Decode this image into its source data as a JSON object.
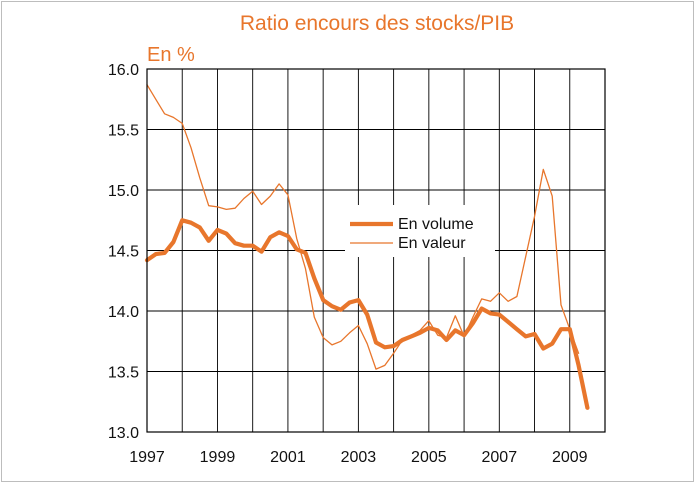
{
  "chart_data": {
    "type": "line",
    "title": "Ratio encours des stocks/PIB",
    "ylabel": "En %",
    "xlabel": "",
    "x_range": [
      1997,
      2010
    ],
    "ylim": [
      13.0,
      16.0
    ],
    "x_ticks": [
      1997,
      1999,
      2001,
      2003,
      2005,
      2007,
      2009
    ],
    "x_tick_labels": [
      "1997",
      "1999",
      "2001",
      "2003",
      "2005",
      "2007",
      "2009"
    ],
    "y_ticks": [
      13.0,
      13.5,
      14.0,
      14.5,
      15.0,
      15.5,
      16.0
    ],
    "y_tick_labels": [
      "13.0",
      "13.5",
      "14.0",
      "14.5",
      "15.0",
      "15.5",
      "16.0"
    ],
    "grid": true,
    "legend_position": "center-right",
    "colors": {
      "accent": "#e8762c",
      "grid": "#000000"
    },
    "series": [
      {
        "name": "En volume",
        "style": "thick",
        "x": [
          1997.0,
          1997.25,
          1997.5,
          1997.75,
          1998.0,
          1998.25,
          1998.5,
          1998.75,
          1999.0,
          1999.25,
          1999.5,
          1999.75,
          2000.0,
          2000.25,
          2000.5,
          2000.75,
          2001.0,
          2001.25,
          2001.5,
          2001.75,
          2002.0,
          2002.25,
          2002.5,
          2002.75,
          2003.0,
          2003.25,
          2003.5,
          2003.75,
          2004.0,
          2004.25,
          2004.5,
          2004.75,
          2005.0,
          2005.25,
          2005.5,
          2005.75,
          2006.0,
          2006.25,
          2006.5,
          2006.75,
          2007.0,
          2007.25,
          2007.5,
          2007.75,
          2008.0,
          2008.25,
          2008.5,
          2008.75,
          2009.0,
          2009.25,
          2009.5
        ],
        "values": [
          14.42,
          14.47,
          14.48,
          14.57,
          14.75,
          14.73,
          14.69,
          14.58,
          14.67,
          14.64,
          14.56,
          14.54,
          14.54,
          14.49,
          14.61,
          14.65,
          14.62,
          14.51,
          14.48,
          14.27,
          14.09,
          14.04,
          14.01,
          14.07,
          14.09,
          13.97,
          13.74,
          13.7,
          13.71,
          13.76,
          13.79,
          13.82,
          13.86,
          13.84,
          13.76,
          13.84,
          13.8,
          13.9,
          14.02,
          13.98,
          13.97,
          13.91,
          13.85,
          13.79,
          13.81,
          13.69,
          13.73,
          13.85,
          13.85,
          13.55,
          13.2
        ]
      },
      {
        "name": "En valeur",
        "style": "thin",
        "x": [
          1997.0,
          1997.25,
          1997.5,
          1997.75,
          1998.0,
          1998.25,
          1998.5,
          1998.75,
          1999.0,
          1999.25,
          1999.5,
          1999.75,
          2000.0,
          2000.25,
          2000.5,
          2000.75,
          2001.0,
          2001.25,
          2001.5,
          2001.75,
          2002.0,
          2002.25,
          2002.5,
          2002.75,
          2003.0,
          2003.25,
          2003.5,
          2003.75,
          2004.0,
          2004.25,
          2004.5,
          2004.75,
          2005.0,
          2005.25,
          2005.5,
          2005.75,
          2006.0,
          2006.25,
          2006.5,
          2006.75,
          2007.0,
          2007.25,
          2007.5,
          2007.75,
          2008.0,
          2008.25,
          2008.5,
          2008.75,
          2009.0,
          2009.25
        ],
        "values": [
          15.87,
          15.75,
          15.63,
          15.6,
          15.55,
          15.35,
          15.1,
          14.87,
          14.86,
          14.84,
          14.85,
          14.93,
          14.99,
          14.88,
          14.95,
          15.05,
          14.96,
          14.6,
          14.35,
          13.95,
          13.78,
          13.72,
          13.75,
          13.82,
          13.88,
          13.73,
          13.52,
          13.55,
          13.65,
          13.76,
          13.8,
          13.84,
          13.92,
          13.8,
          13.78,
          13.96,
          13.79,
          13.95,
          14.1,
          14.08,
          14.15,
          14.08,
          14.12,
          14.45,
          14.78,
          15.17,
          14.95,
          14.05,
          13.85,
          13.65
        ]
      }
    ]
  }
}
